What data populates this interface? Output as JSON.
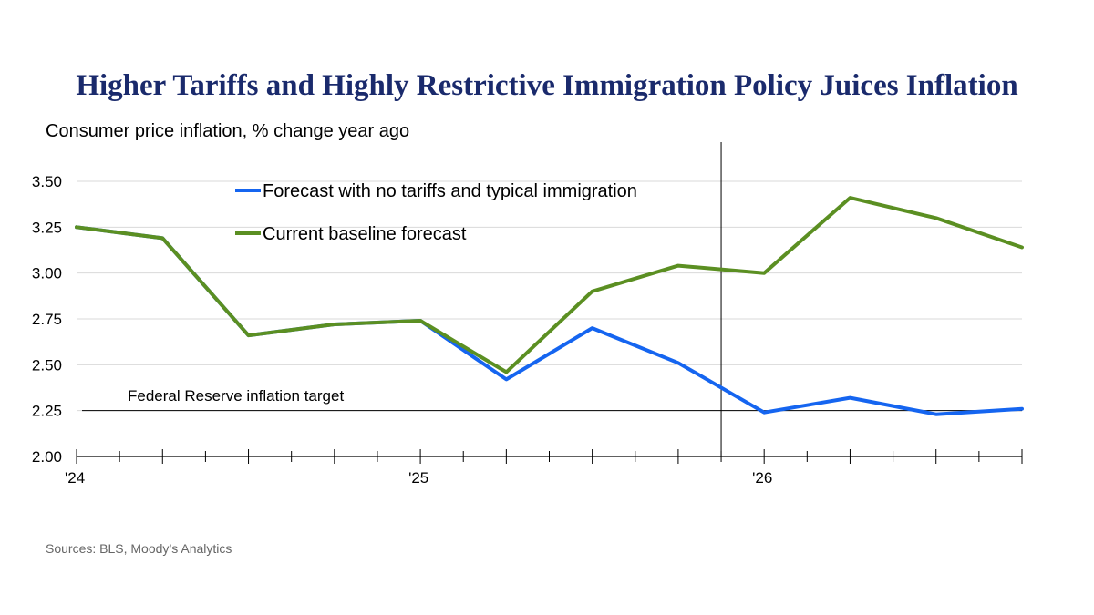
{
  "title": "Higher Tariffs and Highly Restrictive Immigration Policy Juices Inflation",
  "source": "Sources: BLS, Moody’s Analytics",
  "colors": {
    "title": "#1a2a6c",
    "baseline": "#5b8f22",
    "no_tariff": "#1565f0",
    "grid": "#d9d9d9"
  },
  "chart_data": {
    "type": "line",
    "title": "Higher Tariffs and Highly Restrictive Immigration Policy Juices Inflation",
    "ylabel": "Consumer price inflation, % change year ago",
    "xlabel": "",
    "ylim": [
      2.0,
      3.5
    ],
    "yticks": [
      "2.00",
      "2.25",
      "2.50",
      "2.75",
      "3.00",
      "3.25",
      "3.50"
    ],
    "xlim": [
      0,
      11
    ],
    "xticks": [
      {
        "x": 0,
        "label": "'24"
      },
      {
        "x": 4,
        "label": "'25"
      },
      {
        "x": 8,
        "label": "'26"
      }
    ],
    "grid": true,
    "legend": "top-left",
    "forecast_divider_x": 7.5,
    "target": {
      "value": 2.25,
      "label": "Federal Reserve inflation target"
    },
    "series": [
      {
        "name": "Forecast with no tariffs and typical immigration",
        "color": "#1565f0",
        "x": [
          0,
          1,
          2,
          3,
          4,
          5,
          6,
          7,
          8,
          9,
          10,
          11
        ],
        "values": [
          3.25,
          3.19,
          2.66,
          2.72,
          2.74,
          2.42,
          2.7,
          2.51,
          2.24,
          2.32,
          2.23,
          2.26
        ]
      },
      {
        "name": "Current baseline forecast",
        "color": "#5b8f22",
        "x": [
          0,
          1,
          2,
          3,
          4,
          5,
          6,
          7,
          8,
          9,
          10,
          11
        ],
        "values": [
          3.25,
          3.19,
          2.66,
          2.72,
          2.74,
          2.46,
          2.9,
          3.04,
          3.0,
          3.41,
          3.3,
          3.14
        ]
      }
    ]
  }
}
